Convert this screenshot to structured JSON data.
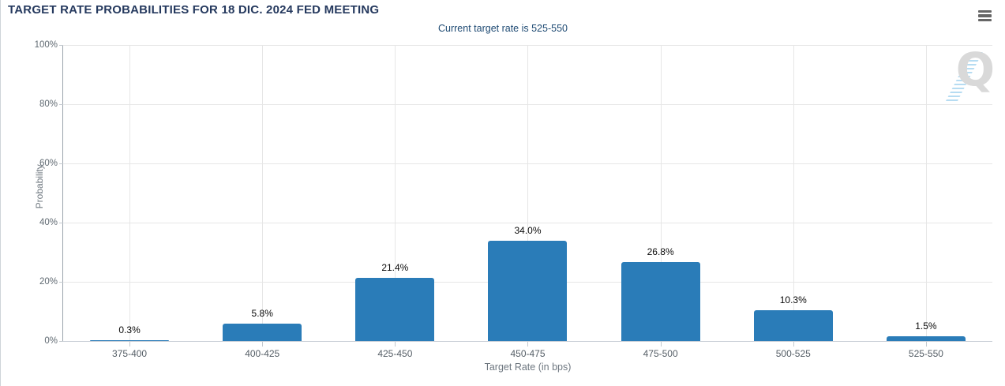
{
  "header": {
    "title": "TARGET RATE PROBABILITIES FOR 18 DIC. 2024 FED MEETING",
    "subtitle": "Current target rate is 525-550",
    "menu_icon": "hamburger-icon"
  },
  "watermark": {
    "letter": "Q"
  },
  "chart_data": {
    "type": "bar",
    "title": "TARGET RATE PROBABILITIES FOR 18 DIC. 2024 FED MEETING",
    "subtitle": "Current target rate is 525-550",
    "categories": [
      "375-400",
      "400-425",
      "425-450",
      "450-475",
      "475-500",
      "500-525",
      "525-550"
    ],
    "values": [
      0.3,
      5.8,
      21.4,
      34.0,
      26.8,
      10.3,
      1.5
    ],
    "value_labels": [
      "0.3%",
      "5.8%",
      "21.4%",
      "34.0%",
      "26.8%",
      "10.3%",
      "1.5%"
    ],
    "xlabel": "Target Rate (in bps)",
    "ylabel": "Probability",
    "ylim": [
      0,
      100
    ],
    "yticks": [
      {
        "value": 0,
        "label": "0%"
      },
      {
        "value": 20,
        "label": "20%"
      },
      {
        "value": 40,
        "label": "40%"
      },
      {
        "value": 60,
        "label": "60%"
      },
      {
        "value": 80,
        "label": "80%"
      },
      {
        "value": 100,
        "label": "100%"
      }
    ],
    "grid": true,
    "legend": "none",
    "colors": {
      "bar": "#2a7cb8",
      "title": "#25395e",
      "subtitle": "#1e4a73",
      "gridline": "#e6e6e6",
      "axis_text": "#606a72",
      "axis_title": "#6e7780",
      "menu_icon": "#666666",
      "watermark_letter": "#d9d9d9",
      "watermark_stripes": "#aed8f0"
    }
  }
}
